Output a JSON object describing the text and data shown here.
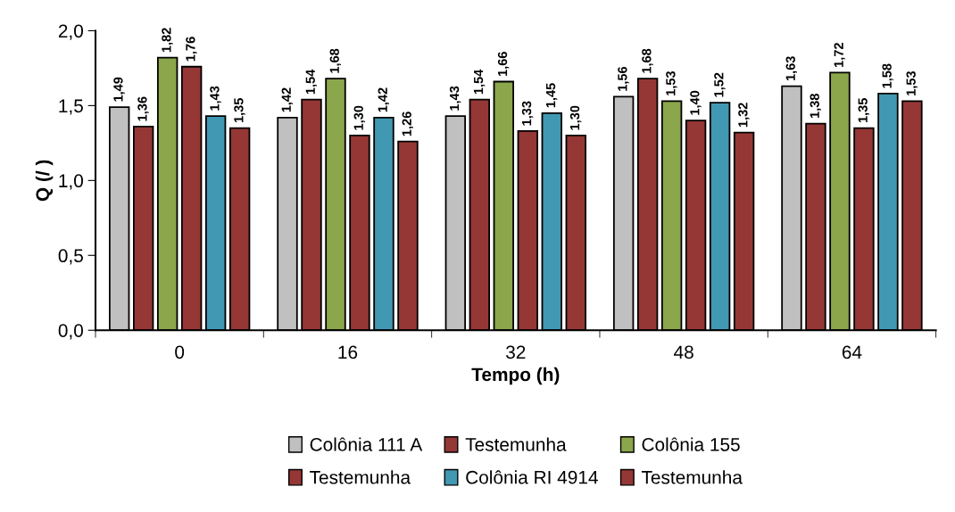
{
  "chart_data": {
    "type": "bar",
    "xlabel": "Tempo (h)",
    "ylabel": "Q (/ )",
    "categories": [
      "0",
      "16",
      "32",
      "48",
      "64"
    ],
    "ylim": [
      0,
      2
    ],
    "yticks": [
      {
        "value": 0,
        "label": "0,0"
      },
      {
        "value": 0.5,
        "label": "0,5"
      },
      {
        "value": 1,
        "label": "1,0"
      },
      {
        "value": 1.5,
        "label": "1,5"
      },
      {
        "value": 2,
        "label": "2,0"
      }
    ],
    "grid": false,
    "legend": "bottom",
    "series": [
      {
        "name": "Colônia 111 A",
        "color": "#c0c0c0",
        "values": [
          1.49,
          1.42,
          1.43,
          1.56,
          1.63
        ],
        "value_labels": [
          "1,49",
          "1,42",
          "1,43",
          "1,56",
          "1,63"
        ]
      },
      {
        "name": "Testemunha",
        "color": "#953735",
        "values": [
          1.36,
          1.54,
          1.54,
          1.68,
          1.38
        ],
        "value_labels": [
          "1,36",
          "1,54",
          "1,54",
          "1,68",
          "1,38"
        ]
      },
      {
        "name": "Colônia 155",
        "color": "#8ba64b",
        "values": [
          1.82,
          1.68,
          1.66,
          1.53,
          1.72
        ],
        "value_labels": [
          "1,82",
          "1,68",
          "1,66",
          "1,53",
          "1,72"
        ]
      },
      {
        "name": "Testemunha",
        "color": "#953735",
        "values": [
          1.76,
          1.3,
          1.33,
          1.4,
          1.35
        ],
        "value_labels": [
          "1,76",
          "1,30",
          "1,33",
          "1,40",
          "1,35"
        ]
      },
      {
        "name": "Colônia RI 4914",
        "color": "#4198b2",
        "values": [
          1.43,
          1.42,
          1.45,
          1.52,
          1.58
        ],
        "value_labels": [
          "1,43",
          "1,42",
          "1,45",
          "1,52",
          "1,58"
        ]
      },
      {
        "name": "Testemunha",
        "color": "#953735",
        "values": [
          1.35,
          1.26,
          1.3,
          1.32,
          1.53
        ],
        "value_labels": [
          "1,35",
          "1,26",
          "1,30",
          "1,32",
          "1,53"
        ]
      }
    ]
  }
}
